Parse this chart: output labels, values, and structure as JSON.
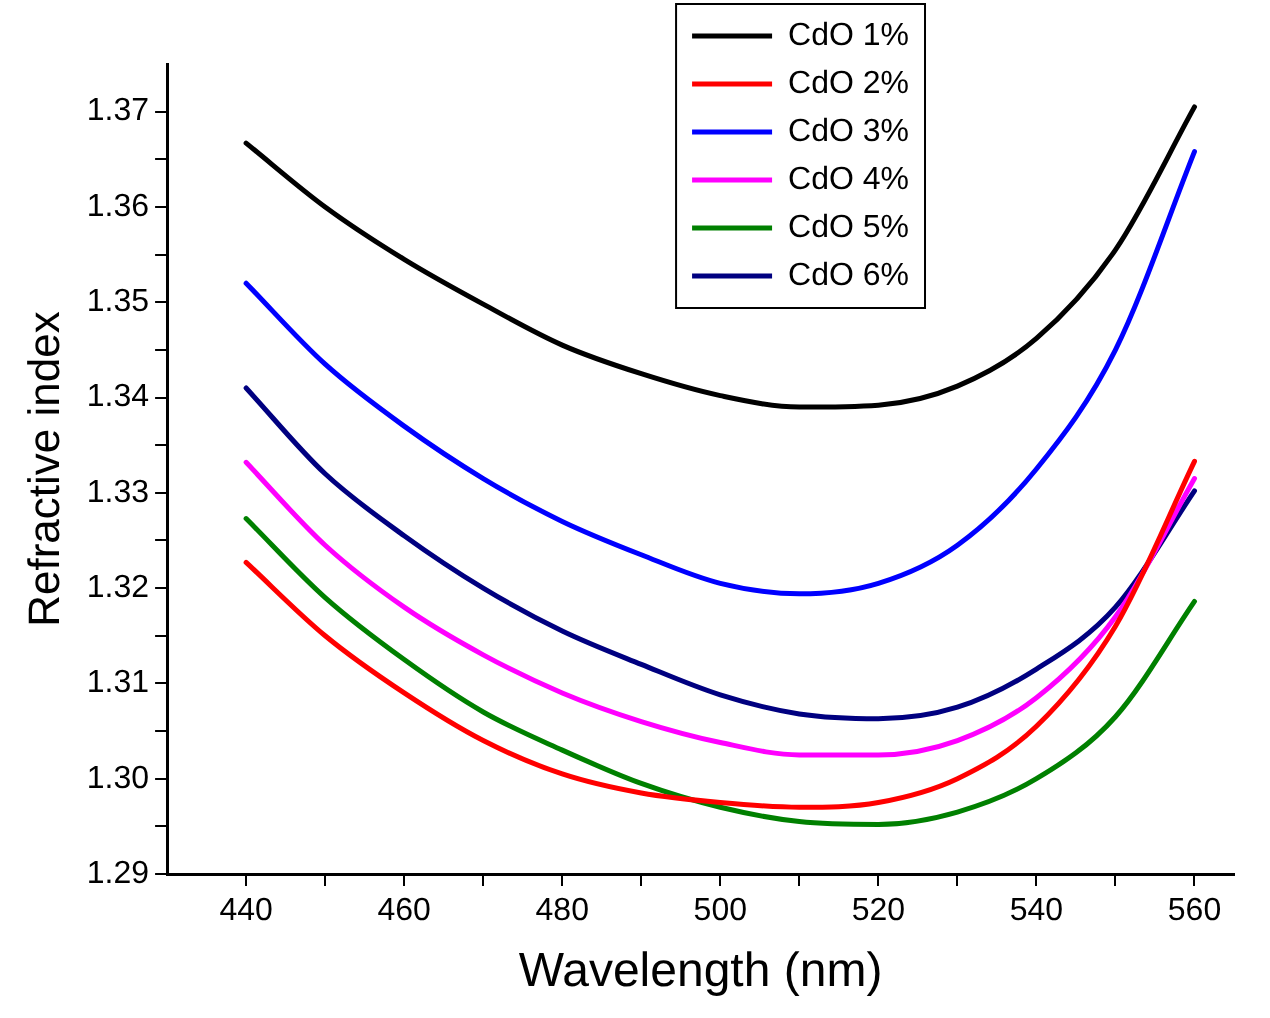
{
  "chart_data": {
    "type": "line",
    "xlabel": "Wavelength (nm)",
    "ylabel": "Refractive index",
    "x": [
      440,
      450,
      460,
      470,
      480,
      490,
      500,
      510,
      520,
      530,
      540,
      550,
      560
    ],
    "xlim": [
      430,
      565
    ],
    "xticks": [
      440,
      {
        "value": 450,
        "label": null
      },
      460,
      {
        "value": 470,
        "label": null
      },
      480,
      {
        "value": 490,
        "label": null
      },
      500,
      {
        "value": 510,
        "label": null
      },
      520,
      {
        "value": 530,
        "label": null
      },
      540,
      {
        "value": 550,
        "label": null
      },
      560
    ],
    "ylim": [
      1.29,
      1.375
    ],
    "yticks": [
      {
        "value": 1.29,
        "label": "1.29"
      },
      {
        "value": 1.295,
        "label": null
      },
      {
        "value": 1.3,
        "label": "1.30"
      },
      {
        "value": 1.305,
        "label": null
      },
      {
        "value": 1.31,
        "label": "1.31"
      },
      {
        "value": 1.315,
        "label": null
      },
      {
        "value": 1.32,
        "label": "1.32"
      },
      {
        "value": 1.325,
        "label": null
      },
      {
        "value": 1.33,
        "label": "1.33"
      },
      {
        "value": 1.335,
        "label": null
      },
      {
        "value": 1.34,
        "label": "1.34"
      },
      {
        "value": 1.345,
        "label": null
      },
      {
        "value": 1.35,
        "label": "1.35"
      },
      {
        "value": 1.355,
        "label": null
      },
      {
        "value": 1.36,
        "label": "1.36"
      },
      {
        "value": 1.365,
        "label": null
      },
      {
        "value": 1.37,
        "label": "1.37"
      }
    ],
    "grid": false,
    "legend": "top",
    "marker": "none",
    "line_style": "solid",
    "series": [
      {
        "name": "CdO 1%",
        "color": "#000000",
        "values": [
          1.3667,
          1.36,
          1.3545,
          1.3498,
          1.3455,
          1.3425,
          1.3402,
          1.339,
          1.3392,
          1.3412,
          1.3462,
          1.3555,
          1.3705
        ]
      },
      {
        "name": "CdO 2%",
        "color": "#ff0000",
        "values": [
          1.3227,
          1.315,
          1.309,
          1.304,
          1.3005,
          1.2985,
          1.2975,
          1.297,
          1.2975,
          1.3,
          1.3055,
          1.316,
          1.3333
        ]
      },
      {
        "name": "CdO 3%",
        "color": "#0000ff",
        "values": [
          1.352,
          1.3435,
          1.337,
          1.3315,
          1.327,
          1.3235,
          1.3205,
          1.3194,
          1.3205,
          1.3245,
          1.3325,
          1.345,
          1.3658
        ]
      },
      {
        "name": "CdO 4%",
        "color": "#ff00ff",
        "values": [
          1.3332,
          1.3245,
          1.318,
          1.313,
          1.309,
          1.306,
          1.3038,
          1.3025,
          1.3025,
          1.304,
          1.3085,
          1.317,
          1.3315
        ]
      },
      {
        "name": "CdO 5%",
        "color": "#008000",
        "values": [
          1.3273,
          1.319,
          1.3125,
          1.307,
          1.303,
          1.2995,
          1.297,
          1.2955,
          1.2952,
          1.2965,
          1.3,
          1.3065,
          1.3186
        ]
      },
      {
        "name": "CdO 6%",
        "color": "#000080",
        "values": [
          1.341,
          1.332,
          1.3255,
          1.32,
          1.3155,
          1.312,
          1.3088,
          1.3068,
          1.3063,
          1.3075,
          1.3115,
          1.318,
          1.3302
        ]
      }
    ]
  }
}
